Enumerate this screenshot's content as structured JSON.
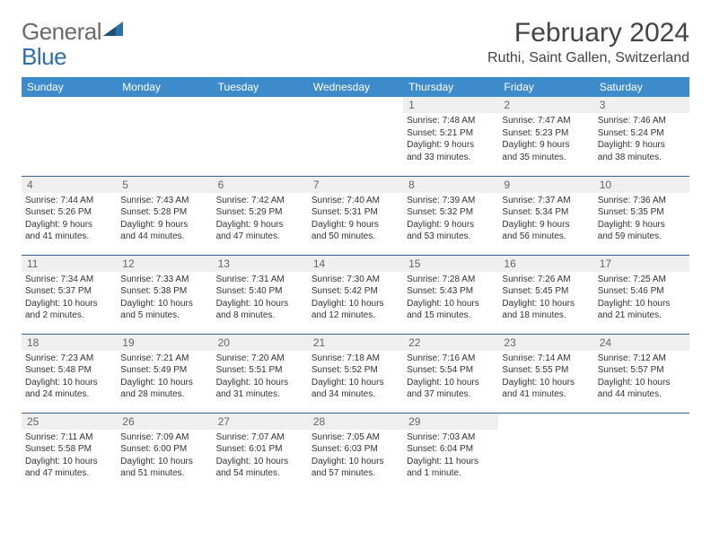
{
  "brand": {
    "name_gray": "General",
    "name_blue": "Blue"
  },
  "header": {
    "month_year": "February 2024",
    "location": "Ruthi, Saint Gallen, Switzerland"
  },
  "colors": {
    "header_bg": "#3e8bcb",
    "header_text": "#ffffff",
    "daynum_bg": "#efefef",
    "daynum_text": "#666666",
    "cell_border": "#3e5f87",
    "body_text": "#333333",
    "logo_gray": "#6a6a6a",
    "logo_blue": "#2f6fa8",
    "background": "#ffffff"
  },
  "typography": {
    "month_fontsize_pt": 22,
    "location_fontsize_pt": 12,
    "dayheader_fontsize_pt": 9,
    "daynum_fontsize_pt": 9,
    "cell_fontsize_pt": 7.5
  },
  "calendar": {
    "day_headers": [
      "Sunday",
      "Monday",
      "Tuesday",
      "Wednesday",
      "Thursday",
      "Friday",
      "Saturday"
    ],
    "weeks": [
      [
        {
          "empty": true
        },
        {
          "empty": true
        },
        {
          "empty": true
        },
        {
          "empty": true
        },
        {
          "num": "1",
          "sunrise": "Sunrise: 7:48 AM",
          "sunset": "Sunset: 5:21 PM",
          "daylight1": "Daylight: 9 hours",
          "daylight2": "and 33 minutes."
        },
        {
          "num": "2",
          "sunrise": "Sunrise: 7:47 AM",
          "sunset": "Sunset: 5:23 PM",
          "daylight1": "Daylight: 9 hours",
          "daylight2": "and 35 minutes."
        },
        {
          "num": "3",
          "sunrise": "Sunrise: 7:46 AM",
          "sunset": "Sunset: 5:24 PM",
          "daylight1": "Daylight: 9 hours",
          "daylight2": "and 38 minutes."
        }
      ],
      [
        {
          "num": "4",
          "sunrise": "Sunrise: 7:44 AM",
          "sunset": "Sunset: 5:26 PM",
          "daylight1": "Daylight: 9 hours",
          "daylight2": "and 41 minutes."
        },
        {
          "num": "5",
          "sunrise": "Sunrise: 7:43 AM",
          "sunset": "Sunset: 5:28 PM",
          "daylight1": "Daylight: 9 hours",
          "daylight2": "and 44 minutes."
        },
        {
          "num": "6",
          "sunrise": "Sunrise: 7:42 AM",
          "sunset": "Sunset: 5:29 PM",
          "daylight1": "Daylight: 9 hours",
          "daylight2": "and 47 minutes."
        },
        {
          "num": "7",
          "sunrise": "Sunrise: 7:40 AM",
          "sunset": "Sunset: 5:31 PM",
          "daylight1": "Daylight: 9 hours",
          "daylight2": "and 50 minutes."
        },
        {
          "num": "8",
          "sunrise": "Sunrise: 7:39 AM",
          "sunset": "Sunset: 5:32 PM",
          "daylight1": "Daylight: 9 hours",
          "daylight2": "and 53 minutes."
        },
        {
          "num": "9",
          "sunrise": "Sunrise: 7:37 AM",
          "sunset": "Sunset: 5:34 PM",
          "daylight1": "Daylight: 9 hours",
          "daylight2": "and 56 minutes."
        },
        {
          "num": "10",
          "sunrise": "Sunrise: 7:36 AM",
          "sunset": "Sunset: 5:35 PM",
          "daylight1": "Daylight: 9 hours",
          "daylight2": "and 59 minutes."
        }
      ],
      [
        {
          "num": "11",
          "sunrise": "Sunrise: 7:34 AM",
          "sunset": "Sunset: 5:37 PM",
          "daylight1": "Daylight: 10 hours",
          "daylight2": "and 2 minutes."
        },
        {
          "num": "12",
          "sunrise": "Sunrise: 7:33 AM",
          "sunset": "Sunset: 5:38 PM",
          "daylight1": "Daylight: 10 hours",
          "daylight2": "and 5 minutes."
        },
        {
          "num": "13",
          "sunrise": "Sunrise: 7:31 AM",
          "sunset": "Sunset: 5:40 PM",
          "daylight1": "Daylight: 10 hours",
          "daylight2": "and 8 minutes."
        },
        {
          "num": "14",
          "sunrise": "Sunrise: 7:30 AM",
          "sunset": "Sunset: 5:42 PM",
          "daylight1": "Daylight: 10 hours",
          "daylight2": "and 12 minutes."
        },
        {
          "num": "15",
          "sunrise": "Sunrise: 7:28 AM",
          "sunset": "Sunset: 5:43 PM",
          "daylight1": "Daylight: 10 hours",
          "daylight2": "and 15 minutes."
        },
        {
          "num": "16",
          "sunrise": "Sunrise: 7:26 AM",
          "sunset": "Sunset: 5:45 PM",
          "daylight1": "Daylight: 10 hours",
          "daylight2": "and 18 minutes."
        },
        {
          "num": "17",
          "sunrise": "Sunrise: 7:25 AM",
          "sunset": "Sunset: 5:46 PM",
          "daylight1": "Daylight: 10 hours",
          "daylight2": "and 21 minutes."
        }
      ],
      [
        {
          "num": "18",
          "sunrise": "Sunrise: 7:23 AM",
          "sunset": "Sunset: 5:48 PM",
          "daylight1": "Daylight: 10 hours",
          "daylight2": "and 24 minutes."
        },
        {
          "num": "19",
          "sunrise": "Sunrise: 7:21 AM",
          "sunset": "Sunset: 5:49 PM",
          "daylight1": "Daylight: 10 hours",
          "daylight2": "and 28 minutes."
        },
        {
          "num": "20",
          "sunrise": "Sunrise: 7:20 AM",
          "sunset": "Sunset: 5:51 PM",
          "daylight1": "Daylight: 10 hours",
          "daylight2": "and 31 minutes."
        },
        {
          "num": "21",
          "sunrise": "Sunrise: 7:18 AM",
          "sunset": "Sunset: 5:52 PM",
          "daylight1": "Daylight: 10 hours",
          "daylight2": "and 34 minutes."
        },
        {
          "num": "22",
          "sunrise": "Sunrise: 7:16 AM",
          "sunset": "Sunset: 5:54 PM",
          "daylight1": "Daylight: 10 hours",
          "daylight2": "and 37 minutes."
        },
        {
          "num": "23",
          "sunrise": "Sunrise: 7:14 AM",
          "sunset": "Sunset: 5:55 PM",
          "daylight1": "Daylight: 10 hours",
          "daylight2": "and 41 minutes."
        },
        {
          "num": "24",
          "sunrise": "Sunrise: 7:12 AM",
          "sunset": "Sunset: 5:57 PM",
          "daylight1": "Daylight: 10 hours",
          "daylight2": "and 44 minutes."
        }
      ],
      [
        {
          "num": "25",
          "sunrise": "Sunrise: 7:11 AM",
          "sunset": "Sunset: 5:58 PM",
          "daylight1": "Daylight: 10 hours",
          "daylight2": "and 47 minutes."
        },
        {
          "num": "26",
          "sunrise": "Sunrise: 7:09 AM",
          "sunset": "Sunset: 6:00 PM",
          "daylight1": "Daylight: 10 hours",
          "daylight2": "and 51 minutes."
        },
        {
          "num": "27",
          "sunrise": "Sunrise: 7:07 AM",
          "sunset": "Sunset: 6:01 PM",
          "daylight1": "Daylight: 10 hours",
          "daylight2": "and 54 minutes."
        },
        {
          "num": "28",
          "sunrise": "Sunrise: 7:05 AM",
          "sunset": "Sunset: 6:03 PM",
          "daylight1": "Daylight: 10 hours",
          "daylight2": "and 57 minutes."
        },
        {
          "num": "29",
          "sunrise": "Sunrise: 7:03 AM",
          "sunset": "Sunset: 6:04 PM",
          "daylight1": "Daylight: 11 hours",
          "daylight2": "and 1 minute."
        },
        {
          "empty": true
        },
        {
          "empty": true
        }
      ]
    ]
  }
}
